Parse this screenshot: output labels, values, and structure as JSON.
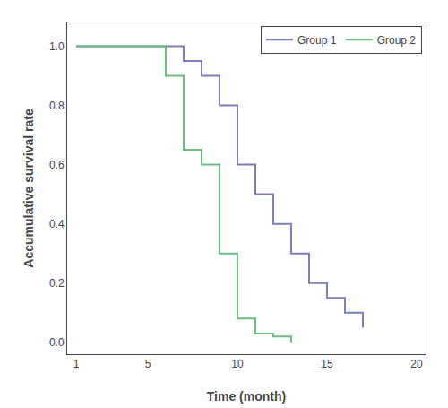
{
  "chart_data": {
    "type": "step",
    "xlabel": "Time (month)",
    "ylabel": "Accumulative survival rate",
    "series": [
      {
        "name": "Group 1",
        "color": "#7b7fb5",
        "x": [
          1,
          6,
          7,
          8,
          9,
          10,
          11,
          12,
          13,
          14,
          15,
          16,
          17
        ],
        "values": [
          1.0,
          1.0,
          0.95,
          0.9,
          0.8,
          0.6,
          0.5,
          0.4,
          0.3,
          0.2,
          0.15,
          0.1,
          0.05
        ]
      },
      {
        "name": "Group 2",
        "color": "#6abf80",
        "x": [
          1,
          5,
          6,
          7,
          8,
          9,
          10,
          11,
          12,
          13
        ],
        "values": [
          1.0,
          1.0,
          0.9,
          0.65,
          0.6,
          0.3,
          0.08,
          0.03,
          0.02,
          0.0
        ]
      }
    ],
    "xlim": [
      0.5,
      20.5
    ],
    "ylim": [
      -0.04,
      1.08
    ],
    "xticks": [
      1,
      5,
      10,
      15,
      20
    ],
    "yticks": [
      {
        "value": 0,
        "label": "0.0"
      },
      0.2,
      0.4,
      0.6,
      0.8,
      {
        "value": 1,
        "label": "1.0"
      }
    ],
    "legend": "upper right",
    "grid": false
  }
}
